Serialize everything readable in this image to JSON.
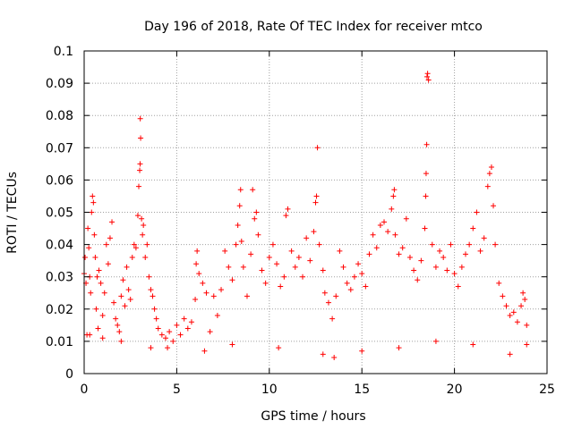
{
  "chart_data": {
    "type": "scatter",
    "title": "Day 196 of 2018, Rate Of TEC Index for receiver mtco",
    "xlabel": "GPS time / hours",
    "ylabel": "ROTI / TECUs",
    "xlim": [
      0,
      25
    ],
    "ylim": [
      0,
      0.1
    ],
    "x_ticks": [
      0,
      5,
      10,
      15,
      20,
      25
    ],
    "x_tick_labels": [
      "0",
      "5",
      "10",
      "15",
      "20",
      "25"
    ],
    "y_ticks": [
      0,
      0.01,
      0.02,
      0.03,
      0.04,
      0.05,
      0.06,
      0.07,
      0.08,
      0.09,
      0.1
    ],
    "y_tick_labels": [
      "0",
      "0.01",
      "0.02",
      "0.03",
      "0.04",
      "0.05",
      "0.06",
      "0.07",
      "0.08",
      "0.09",
      "0.1"
    ],
    "grid": true,
    "marker": "+",
    "color": "#ff0000",
    "series": [
      {
        "points": [
          [
            0.0,
            0.031
          ],
          [
            0.05,
            0.036
          ],
          [
            0.1,
            0.028
          ],
          [
            0.15,
            0.012
          ],
          [
            0.2,
            0.045
          ],
          [
            0.25,
            0.039
          ],
          [
            0.3,
            0.03
          ],
          [
            0.35,
            0.025
          ],
          [
            0.4,
            0.05
          ],
          [
            0.45,
            0.055
          ],
          [
            0.5,
            0.053
          ],
          [
            0.55,
            0.043
          ],
          [
            0.6,
            0.036
          ],
          [
            0.65,
            0.02
          ],
          [
            0.7,
            0.03
          ],
          [
            0.75,
            0.014
          ],
          [
            0.8,
            0.032
          ],
          [
            0.9,
            0.028
          ],
          [
            1.0,
            0.018
          ],
          [
            1.1,
            0.025
          ],
          [
            1.2,
            0.04
          ],
          [
            1.3,
            0.034
          ],
          [
            1.4,
            0.042
          ],
          [
            1.5,
            0.047
          ],
          [
            1.6,
            0.022
          ],
          [
            1.7,
            0.017
          ],
          [
            1.8,
            0.015
          ],
          [
            1.9,
            0.013
          ],
          [
            2.0,
            0.024
          ],
          [
            2.1,
            0.029
          ],
          [
            2.2,
            0.021
          ],
          [
            2.3,
            0.033
          ],
          [
            2.4,
            0.026
          ],
          [
            2.5,
            0.023
          ],
          [
            2.6,
            0.036
          ],
          [
            2.7,
            0.04
          ],
          [
            2.8,
            0.039
          ],
          [
            2.9,
            0.049
          ],
          [
            2.95,
            0.058
          ],
          [
            3.0,
            0.063
          ],
          [
            3.02,
            0.065
          ],
          [
            3.03,
            0.079
          ],
          [
            3.05,
            0.073
          ],
          [
            3.1,
            0.048
          ],
          [
            3.15,
            0.043
          ],
          [
            3.2,
            0.046
          ],
          [
            3.3,
            0.036
          ],
          [
            3.4,
            0.04
          ],
          [
            3.5,
            0.03
          ],
          [
            3.6,
            0.026
          ],
          [
            3.7,
            0.024
          ],
          [
            3.8,
            0.02
          ],
          [
            3.9,
            0.017
          ],
          [
            4.0,
            0.014
          ],
          [
            4.2,
            0.012
          ],
          [
            4.4,
            0.011
          ],
          [
            4.6,
            0.013
          ],
          [
            4.8,
            0.01
          ],
          [
            5.0,
            0.015
          ],
          [
            5.2,
            0.012
          ],
          [
            5.4,
            0.017
          ],
          [
            5.6,
            0.014
          ],
          [
            5.8,
            0.016
          ],
          [
            6.0,
            0.023
          ],
          [
            6.05,
            0.034
          ],
          [
            6.1,
            0.038
          ],
          [
            6.2,
            0.031
          ],
          [
            6.4,
            0.028
          ],
          [
            6.6,
            0.025
          ],
          [
            6.8,
            0.013
          ],
          [
            7.0,
            0.024
          ],
          [
            7.2,
            0.018
          ],
          [
            7.4,
            0.026
          ],
          [
            7.6,
            0.038
          ],
          [
            7.8,
            0.033
          ],
          [
            8.0,
            0.029
          ],
          [
            8.2,
            0.04
          ],
          [
            8.3,
            0.046
          ],
          [
            8.4,
            0.052
          ],
          [
            8.45,
            0.057
          ],
          [
            8.5,
            0.041
          ],
          [
            8.6,
            0.033
          ],
          [
            8.8,
            0.024
          ],
          [
            9.0,
            0.037
          ],
          [
            9.1,
            0.057
          ],
          [
            9.2,
            0.048
          ],
          [
            9.3,
            0.05
          ],
          [
            9.4,
            0.043
          ],
          [
            9.6,
            0.032
          ],
          [
            9.8,
            0.028
          ],
          [
            10.0,
            0.036
          ],
          [
            10.2,
            0.04
          ],
          [
            10.4,
            0.034
          ],
          [
            10.6,
            0.027
          ],
          [
            10.8,
            0.03
          ],
          [
            10.9,
            0.049
          ],
          [
            11.0,
            0.051
          ],
          [
            11.2,
            0.038
          ],
          [
            11.4,
            0.033
          ],
          [
            11.6,
            0.036
          ],
          [
            11.8,
            0.03
          ],
          [
            12.0,
            0.042
          ],
          [
            12.2,
            0.035
          ],
          [
            12.4,
            0.044
          ],
          [
            12.5,
            0.053
          ],
          [
            12.55,
            0.055
          ],
          [
            12.6,
            0.07
          ],
          [
            12.7,
            0.04
          ],
          [
            12.9,
            0.032
          ],
          [
            13.0,
            0.025
          ],
          [
            13.2,
            0.022
          ],
          [
            13.4,
            0.017
          ],
          [
            13.6,
            0.024
          ],
          [
            13.8,
            0.038
          ],
          [
            14.0,
            0.033
          ],
          [
            14.2,
            0.028
          ],
          [
            14.4,
            0.026
          ],
          [
            14.6,
            0.03
          ],
          [
            14.8,
            0.034
          ],
          [
            15.0,
            0.031
          ],
          [
            15.2,
            0.027
          ],
          [
            15.4,
            0.037
          ],
          [
            15.6,
            0.043
          ],
          [
            15.8,
            0.039
          ],
          [
            16.0,
            0.046
          ],
          [
            16.2,
            0.047
          ],
          [
            16.4,
            0.044
          ],
          [
            16.6,
            0.051
          ],
          [
            16.7,
            0.055
          ],
          [
            16.75,
            0.057
          ],
          [
            16.8,
            0.043
          ],
          [
            17.0,
            0.037
          ],
          [
            17.2,
            0.039
          ],
          [
            17.4,
            0.048
          ],
          [
            17.6,
            0.036
          ],
          [
            17.8,
            0.032
          ],
          [
            18.0,
            0.029
          ],
          [
            18.2,
            0.035
          ],
          [
            18.4,
            0.045
          ],
          [
            18.45,
            0.055
          ],
          [
            18.47,
            0.062
          ],
          [
            18.5,
            0.071
          ],
          [
            18.52,
            0.092
          ],
          [
            18.55,
            0.093
          ],
          [
            18.6,
            0.091
          ],
          [
            18.8,
            0.04
          ],
          [
            19.0,
            0.033
          ],
          [
            19.2,
            0.038
          ],
          [
            19.4,
            0.036
          ],
          [
            19.6,
            0.032
          ],
          [
            19.8,
            0.04
          ],
          [
            20.0,
            0.031
          ],
          [
            20.2,
            0.027
          ],
          [
            20.4,
            0.033
          ],
          [
            20.6,
            0.037
          ],
          [
            20.8,
            0.04
          ],
          [
            21.0,
            0.045
          ],
          [
            21.2,
            0.05
          ],
          [
            21.4,
            0.038
          ],
          [
            21.6,
            0.042
          ],
          [
            21.8,
            0.058
          ],
          [
            21.9,
            0.062
          ],
          [
            22.0,
            0.064
          ],
          [
            22.1,
            0.052
          ],
          [
            22.2,
            0.04
          ],
          [
            22.4,
            0.028
          ],
          [
            22.6,
            0.024
          ],
          [
            22.8,
            0.021
          ],
          [
            23.0,
            0.018
          ],
          [
            23.2,
            0.019
          ],
          [
            23.4,
            0.016
          ],
          [
            23.6,
            0.021
          ],
          [
            23.7,
            0.025
          ],
          [
            23.8,
            0.023
          ],
          [
            23.9,
            0.015
          ],
          [
            0.3,
            0.012
          ],
          [
            1.0,
            0.011
          ],
          [
            2.0,
            0.01
          ],
          [
            3.6,
            0.008
          ],
          [
            4.5,
            0.008
          ],
          [
            6.5,
            0.007
          ],
          [
            8.0,
            0.009
          ],
          [
            10.5,
            0.008
          ],
          [
            12.9,
            0.006
          ],
          [
            13.5,
            0.005
          ],
          [
            15.0,
            0.007
          ],
          [
            17.0,
            0.008
          ],
          [
            19.0,
            0.01
          ],
          [
            21.0,
            0.009
          ],
          [
            23.0,
            0.006
          ],
          [
            23.9,
            0.009
          ]
        ]
      }
    ]
  }
}
